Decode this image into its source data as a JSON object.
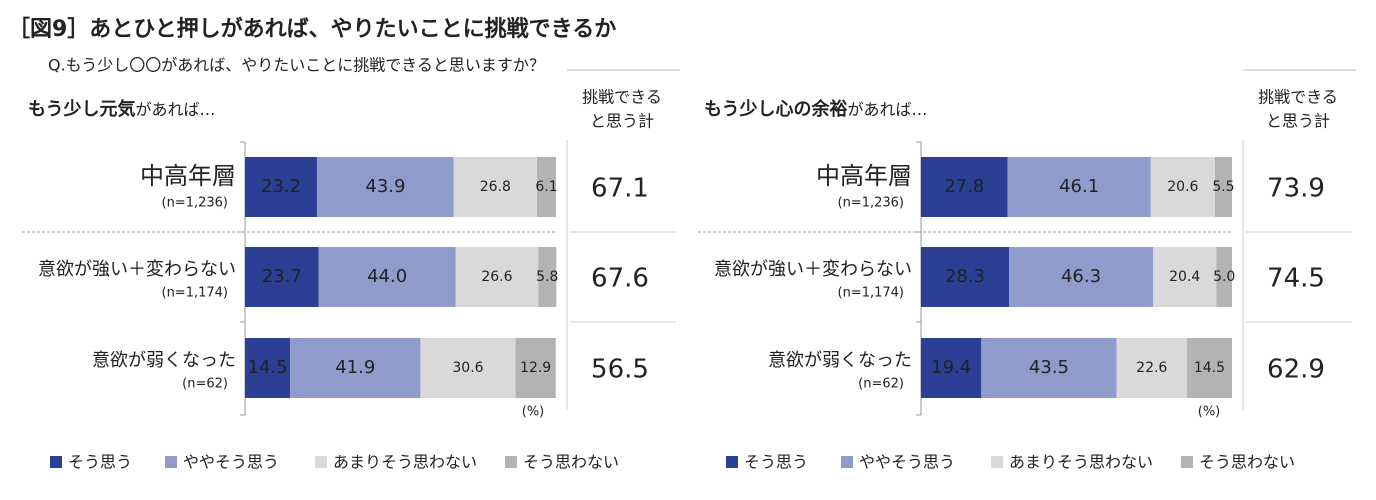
{
  "title": "［図9］あとひと押しがあれば、やりたいことに挑戦できるか",
  "question": "Q.もう少し〇〇があれば、やりたいことに挑戦できると思いますか？",
  "chart_data": [
    {
      "type": "bar",
      "subtitle": [
        "もう少し元気",
        "があれば…"
      ],
      "categories": [
        "中高年層",
        "意欲が強い＋変わらない",
        "意欲が弱くなった"
      ],
      "category_notes": [
        "(n=1,236)",
        "(n=1,174)",
        "(n=62)"
      ],
      "xlim": [
        0,
        100
      ],
      "unit": "(%)",
      "series": [
        {
          "name": "そう思う",
          "color": "#2b3f95",
          "values": [
            23.2,
            23.7,
            14.5
          ]
        },
        {
          "name": "ややそう思う",
          "color": "#8e9bcb",
          "values": [
            43.9,
            44.0,
            41.9
          ],
          "value_labels": [
            "43.9",
            "44.0",
            "41.9"
          ]
        },
        {
          "name": "あまりそう思わない",
          "color": "#d9d9d9",
          "values": [
            26.8,
            26.6,
            30.6
          ]
        },
        {
          "name": "そう思わない",
          "color": "#b3b3b3",
          "values": [
            6.1,
            5.8,
            12.9
          ]
        }
      ],
      "total_header": [
        "挑戦できる",
        "と思う計"
      ],
      "totals": [
        67.1,
        67.6,
        56.5
      ]
    },
    {
      "type": "bar",
      "subtitle": [
        "もう少し心の余裕",
        "があれば…"
      ],
      "categories": [
        "中高年層",
        "意欲が強い＋変わらない",
        "意欲が弱くなった"
      ],
      "category_notes": [
        "(n=1,236)",
        "(n=1,174)",
        "(n=62)"
      ],
      "xlim": [
        0,
        100
      ],
      "unit": "(%)",
      "series": [
        {
          "name": "そう思う",
          "color": "#2b3f95",
          "values": [
            27.8,
            28.3,
            19.4
          ]
        },
        {
          "name": "ややそう思う",
          "color": "#8e9bcb",
          "values": [
            46.1,
            46.3,
            43.5
          ]
        },
        {
          "name": "あまりそう思わない",
          "color": "#d9d9d9",
          "values": [
            20.6,
            20.4,
            22.6
          ]
        },
        {
          "name": "そう思わない",
          "color": "#b3b3b3",
          "values": [
            5.5,
            5.0,
            14.5
          ],
          "value_labels": [
            "5.5",
            "5.0",
            "14.5"
          ]
        }
      ],
      "total_header": [
        "挑戦できる",
        "と思う計"
      ],
      "totals": [
        73.9,
        74.5,
        62.9
      ]
    }
  ]
}
